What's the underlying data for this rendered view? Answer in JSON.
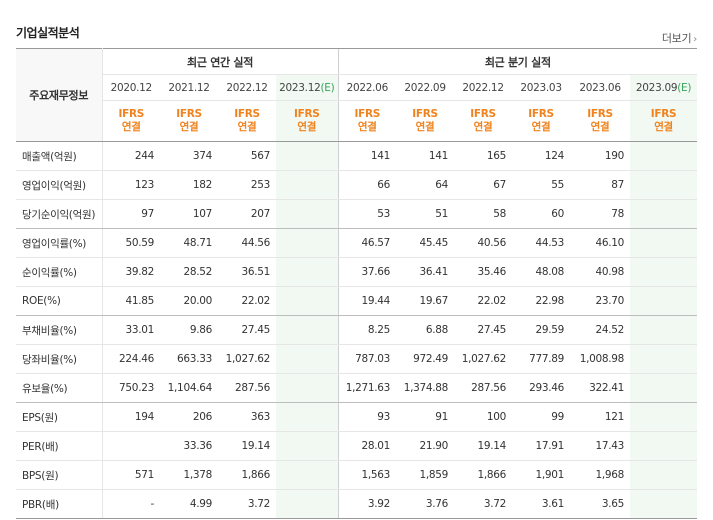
{
  "title": "기업실적분석",
  "more_label": "더보기",
  "header": {
    "label_col": "주요재무정보",
    "annual_group": "최근 연간 실적",
    "quarter_group": "최근 분기 실적",
    "annual_periods": [
      "2020.12",
      "2021.12",
      "2022.12",
      "2023.12"
    ],
    "annual_est_suffix": "(E)",
    "quarter_periods": [
      "2022.06",
      "2022.09",
      "2022.12",
      "2023.03",
      "2023.06",
      "2023.09"
    ],
    "quarter_est_suffix": "(E)",
    "ifrs_line1": "IFRS",
    "ifrs_line2": "연결"
  },
  "rows": [
    {
      "label": "매출액(억원)",
      "annual": [
        "244",
        "374",
        "567",
        ""
      ],
      "quarter": [
        "141",
        "141",
        "165",
        "124",
        "190",
        ""
      ]
    },
    {
      "label": "영업이익(억원)",
      "annual": [
        "123",
        "182",
        "253",
        ""
      ],
      "quarter": [
        "66",
        "64",
        "67",
        "55",
        "87",
        ""
      ]
    },
    {
      "label": "당기순이익(억원)",
      "annual": [
        "97",
        "107",
        "207",
        ""
      ],
      "quarter": [
        "53",
        "51",
        "58",
        "60",
        "78",
        ""
      ]
    },
    {
      "label": "영업이익률(%)",
      "annual": [
        "50.59",
        "48.71",
        "44.56",
        ""
      ],
      "quarter": [
        "46.57",
        "45.45",
        "40.56",
        "44.53",
        "46.10",
        ""
      ]
    },
    {
      "label": "순이익률(%)",
      "annual": [
        "39.82",
        "28.52",
        "36.51",
        ""
      ],
      "quarter": [
        "37.66",
        "36.41",
        "35.46",
        "48.08",
        "40.98",
        ""
      ]
    },
    {
      "label": "ROE(%)",
      "annual": [
        "41.85",
        "20.00",
        "22.02",
        ""
      ],
      "quarter": [
        "19.44",
        "19.67",
        "22.02",
        "22.98",
        "23.70",
        ""
      ]
    },
    {
      "label": "부채비율(%)",
      "annual": [
        "33.01",
        "9.86",
        "27.45",
        ""
      ],
      "quarter": [
        "8.25",
        "6.88",
        "27.45",
        "29.59",
        "24.52",
        ""
      ]
    },
    {
      "label": "당좌비율(%)",
      "annual": [
        "224.46",
        "663.33",
        "1,027.62",
        ""
      ],
      "quarter": [
        "787.03",
        "972.49",
        "1,027.62",
        "777.89",
        "1,008.98",
        ""
      ]
    },
    {
      "label": "유보율(%)",
      "annual": [
        "750.23",
        "1,104.64",
        "287.56",
        ""
      ],
      "quarter": [
        "1,271.63",
        "1,374.88",
        "287.56",
        "293.46",
        "322.41",
        ""
      ]
    },
    {
      "label": "EPS(원)",
      "annual": [
        "194",
        "206",
        "363",
        ""
      ],
      "quarter": [
        "93",
        "91",
        "100",
        "99",
        "121",
        ""
      ]
    },
    {
      "label": "PER(배)",
      "annual": [
        "",
        "33.36",
        "19.14",
        ""
      ],
      "quarter": [
        "28.01",
        "21.90",
        "19.14",
        "17.91",
        "17.43",
        ""
      ]
    },
    {
      "label": "BPS(원)",
      "annual": [
        "571",
        "1,378",
        "1,866",
        ""
      ],
      "quarter": [
        "1,563",
        "1,859",
        "1,866",
        "1,901",
        "1,968",
        ""
      ]
    },
    {
      "label": "PBR(배)",
      "annual": [
        "-",
        "4.99",
        "3.72",
        ""
      ],
      "quarter": [
        "3.92",
        "3.76",
        "3.72",
        "3.61",
        "3.65",
        ""
      ]
    }
  ]
}
